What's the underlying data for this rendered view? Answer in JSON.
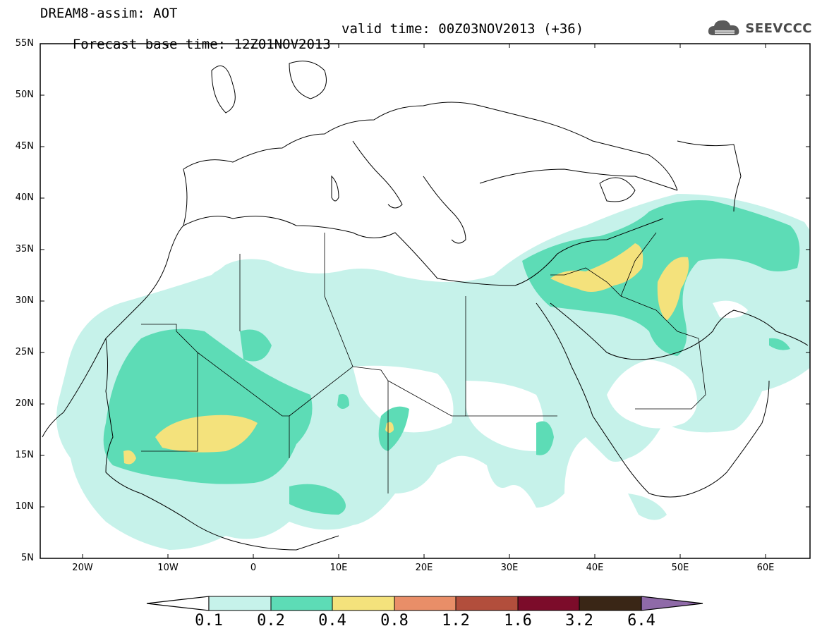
{
  "header": {
    "title": "DREAM8-assim: AOT",
    "base_time": "Forecast base time: 12Z01NOV2013",
    "valid_time": "valid time: 00Z03NOV2013 (+36)"
  },
  "logo": {
    "text": "SEEVCCC",
    "icon": "cloud-icon"
  },
  "map": {
    "lat_labels": [
      "55N",
      "50N",
      "45N",
      "40N",
      "35N",
      "30N",
      "25N",
      "20N",
      "15N",
      "10N",
      "5N"
    ],
    "lon_labels": [
      "20W",
      "10W",
      "0",
      "10E",
      "20E",
      "30E",
      "40E",
      "50E",
      "60E"
    ],
    "lat_range": [
      5,
      55
    ],
    "lon_range": [
      -25,
      65
    ]
  },
  "colorbar": {
    "levels": [
      "0.1",
      "0.2",
      "0.4",
      "0.8",
      "1.2",
      "1.6",
      "3.2",
      "6.4"
    ],
    "colors": [
      "#c6f2ea",
      "#5ddcb6",
      "#f4e27c",
      "#e98e68",
      "#b24e3c",
      "#7c0c2a",
      "#3a2616",
      "#8f6aa8"
    ]
  }
}
